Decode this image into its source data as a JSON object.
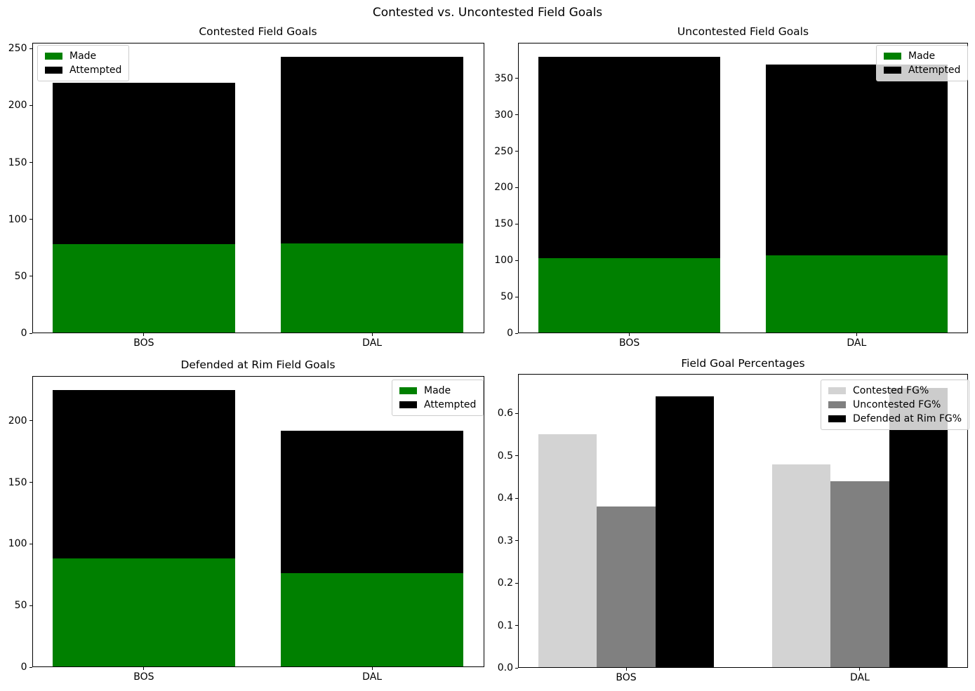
{
  "figure_title": "Contested vs. Uncontested Field Goals",
  "colors": {
    "made": "#008000",
    "attempted": "#000000",
    "contested_pct": "#d3d3d3",
    "uncontested_pct": "#808080",
    "rim_pct": "#000000",
    "legend_border": "#cccccc",
    "text": "#000000"
  },
  "chart_data": [
    {
      "type": "bar",
      "subtype": "overlay",
      "title": "Contested Field Goals",
      "categories": [
        "BOS",
        "DAL"
      ],
      "series": [
        {
          "name": "Made",
          "color": "#008000",
          "values": [
            78,
            79
          ]
        },
        {
          "name": "Attempted",
          "color": "#000000",
          "values": [
            220,
            243
          ]
        }
      ],
      "ylim": [
        0,
        255.15
      ],
      "yticks": [
        0,
        50,
        100,
        150,
        200,
        250
      ],
      "ytick_decimals": 0,
      "grid": false,
      "legend_position": "upper-left"
    },
    {
      "type": "bar",
      "subtype": "overlay",
      "title": "Uncontested Field Goals",
      "categories": [
        "BOS",
        "DAL"
      ],
      "series": [
        {
          "name": "Made",
          "color": "#008000",
          "values": [
            103,
            107
          ]
        },
        {
          "name": "Attempted",
          "color": "#000000",
          "values": [
            380,
            369
          ]
        }
      ],
      "ylim": [
        0,
        399
      ],
      "yticks": [
        0,
        50,
        100,
        150,
        200,
        250,
        300,
        350
      ],
      "ytick_decimals": 0,
      "grid": false,
      "legend_position": "upper-right"
    },
    {
      "type": "bar",
      "subtype": "overlay",
      "title": "Defended at Rim Field Goals",
      "categories": [
        "BOS",
        "DAL"
      ],
      "series": [
        {
          "name": "Made",
          "color": "#008000",
          "values": [
            88,
            76
          ]
        },
        {
          "name": "Attempted",
          "color": "#000000",
          "values": [
            225,
            192
          ]
        }
      ],
      "ylim": [
        0,
        236.25
      ],
      "yticks": [
        0,
        50,
        100,
        150,
        200
      ],
      "ytick_decimals": 0,
      "grid": false,
      "legend_position": "upper-right"
    },
    {
      "type": "bar",
      "subtype": "grouped",
      "title": "Field Goal Percentages",
      "categories": [
        "BOS",
        "DAL"
      ],
      "series": [
        {
          "name": "Contested FG%",
          "color": "#d3d3d3",
          "values": [
            0.55,
            0.48
          ]
        },
        {
          "name": "Uncontested FG%",
          "color": "#808080",
          "values": [
            0.38,
            0.44
          ]
        },
        {
          "name": "Defended at Rim FG%",
          "color": "#000000",
          "values": [
            0.64,
            0.66
          ]
        }
      ],
      "ylim": [
        0,
        0.693
      ],
      "yticks": [
        0,
        0.1,
        0.2,
        0.3,
        0.4,
        0.5,
        0.6
      ],
      "ytick_decimals": 1,
      "grid": false,
      "legend_position": "upper-right"
    }
  ]
}
